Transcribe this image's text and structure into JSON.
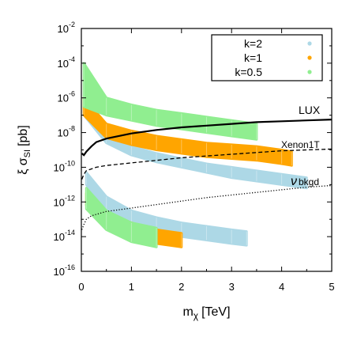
{
  "chart_data": {
    "type": "scatter",
    "xlabel": "m",
    "xlabel_sub": "χ",
    "xlabel_unit": "[TeV]",
    "ylabel": "ξ σ",
    "ylabel_sub": "SI",
    "ylabel_unit": "[pb]",
    "x_ticks": [
      "0",
      "1",
      "2",
      "3",
      "4",
      "5"
    ],
    "y_ticks": [
      {
        "base": "10",
        "exp": "-2"
      },
      {
        "base": "10",
        "exp": "-4"
      },
      {
        "base": "10",
        "exp": "-6"
      },
      {
        "base": "10",
        "exp": "-8"
      },
      {
        "base": "10",
        "exp": "-10"
      },
      {
        "base": "10",
        "exp": "-12"
      },
      {
        "base": "10",
        "exp": "-14"
      },
      {
        "base": "10",
        "exp": "-16"
      }
    ],
    "xlim": [
      0,
      5
    ],
    "ylim_log10": [
      -16,
      -2
    ],
    "y_scale": "log",
    "legend_position": "top-right",
    "series": [
      {
        "name": "k=2",
        "color": "#add8e6",
        "bands": [
          {
            "x": [
              0.05,
              0.5,
              1.0,
              1.5,
              2.0,
              2.5,
              3.0,
              3.5,
              4.0,
              4.5
            ],
            "y_low": [
              -7.0,
              -8.6,
              -9.3,
              -9.7,
              -10.0,
              -10.3,
              -10.6,
              -10.8,
              -11.0,
              -11.2
            ],
            "y_high": [
              -6.5,
              -8.1,
              -8.8,
              -9.2,
              -9.5,
              -9.8,
              -10.0,
              -10.2,
              -10.4,
              -10.6
            ]
          },
          {
            "x": [
              0.1,
              0.5,
              1.0,
              1.5,
              2.0,
              2.5,
              3.0,
              3.3
            ],
            "y_low": [
              -11.0,
              -12.5,
              -13.3,
              -13.7,
              -14.0,
              -14.2,
              -14.4,
              -14.5
            ],
            "y_high": [
              -10.3,
              -11.7,
              -12.5,
              -12.9,
              -13.2,
              -13.4,
              -13.6,
              -13.7
            ]
          }
        ]
      },
      {
        "name": "k=1",
        "color": "#ffa500",
        "bands": [
          {
            "x": [
              0.05,
              0.5,
              1.0,
              1.5,
              2.0,
              2.5,
              3.0,
              3.5,
              4.0,
              4.2
            ],
            "y_low": [
              -7.0,
              -8.3,
              -8.7,
              -9.0,
              -9.2,
              -9.4,
              -9.5,
              -9.6,
              -9.8,
              -9.9
            ],
            "y_high": [
              -6.0,
              -7.5,
              -7.9,
              -8.2,
              -8.4,
              -8.6,
              -8.7,
              -8.8,
              -9.0,
              -9.1
            ]
          },
          {
            "x": [
              0.1,
              0.5,
              1.0,
              1.5,
              2.0
            ],
            "y_low": [
              -12.2,
              -13.4,
              -14.0,
              -14.4,
              -14.6
            ],
            "y_high": [
              -11.5,
              -12.6,
              -13.2,
              -13.6,
              -13.8
            ]
          }
        ]
      },
      {
        "name": "k=0.5",
        "color": "#90ee90",
        "bands": [
          {
            "x": [
              0.05,
              0.5,
              1.0,
              1.5,
              2.0,
              2.5,
              3.0,
              3.5
            ],
            "y_low": [
              -6.5,
              -7.0,
              -7.3,
              -7.6,
              -7.8,
              -8.0,
              -8.2,
              -8.4
            ],
            "y_high": [
              -4.0,
              -6.0,
              -6.4,
              -6.7,
              -6.9,
              -7.1,
              -7.3,
              -7.5
            ]
          },
          {
            "x": [
              0.1,
              0.5,
              1.0,
              1.5
            ],
            "y_low": [
              -12.4,
              -13.6,
              -14.3,
              -14.6
            ],
            "y_high": [
              -11.2,
              -12.5,
              -13.2,
              -13.5
            ]
          }
        ]
      }
    ],
    "curves": [
      {
        "name": "LUX",
        "style": "solid",
        "label": "LUX",
        "x": [
          0.01,
          0.05,
          0.1,
          0.2,
          0.3,
          0.5,
          1.0,
          1.5,
          2.0,
          2.5,
          3.0,
          3.5,
          4.0,
          4.5,
          5.0
        ],
        "y": [
          -9.2,
          -9.3,
          -9.1,
          -8.8,
          -8.55,
          -8.35,
          -8.05,
          -7.85,
          -7.7,
          -7.6,
          -7.5,
          -7.4,
          -7.35,
          -7.3,
          -7.25
        ]
      },
      {
        "name": "Xenon1T",
        "style": "dashed",
        "label": "Xenon1T",
        "x": [
          0.01,
          0.05,
          0.1,
          0.3,
          0.5,
          1.0,
          1.5,
          2.0,
          2.5,
          3.0,
          3.5,
          4.0,
          4.5,
          5.0
        ],
        "y": [
          -10.7,
          -10.4,
          -10.2,
          -10.0,
          -9.9,
          -9.75,
          -9.6,
          -9.45,
          -9.35,
          -9.25,
          -9.15,
          -9.05,
          -9.0,
          -8.95
        ]
      },
      {
        "name": "nu bkgd",
        "style": "dotted",
        "label": "ν",
        "label_small": "bkgd",
        "x": [
          0.01,
          0.05,
          0.1,
          0.2,
          0.5,
          1.0,
          1.5,
          2.0,
          2.5,
          3.0,
          3.5,
          4.0,
          4.5,
          5.0
        ],
        "y": [
          -13.6,
          -13.3,
          -13.0,
          -12.8,
          -12.55,
          -12.35,
          -12.15,
          -11.95,
          -11.75,
          -11.6,
          -11.45,
          -11.3,
          -11.15,
          -11.05
        ]
      }
    ]
  }
}
